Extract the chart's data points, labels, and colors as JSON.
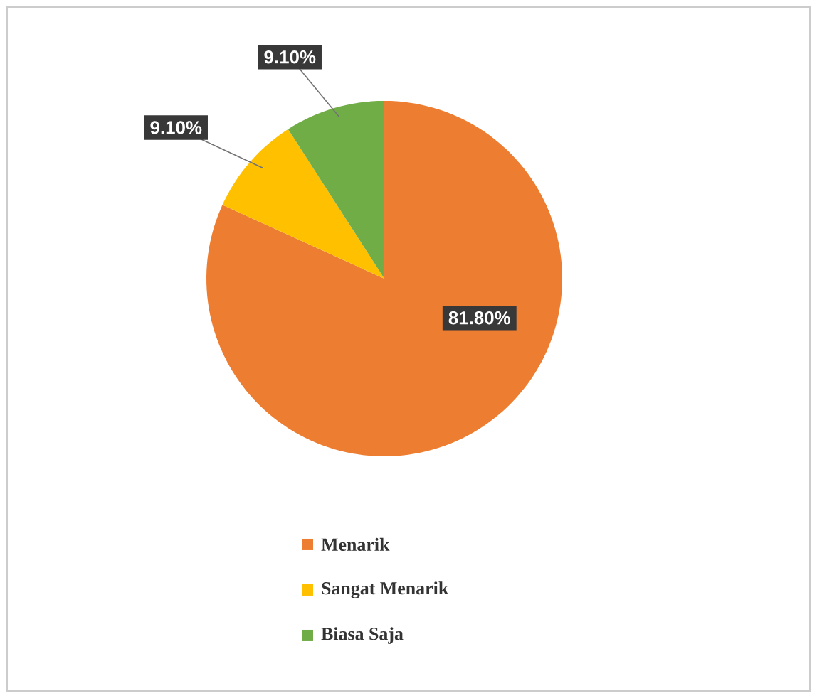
{
  "chart_data": {
    "type": "pie",
    "categories": [
      "Menarik",
      "Sangat Menarik",
      "Biasa Saja"
    ],
    "values": [
      81.8,
      9.1,
      9.1
    ],
    "colors": [
      "#ed7d31",
      "#ffc000",
      "#70ad47"
    ],
    "value_labels": [
      "81.80%",
      "9.10%",
      "9.10%"
    ],
    "legend": "bottom"
  }
}
